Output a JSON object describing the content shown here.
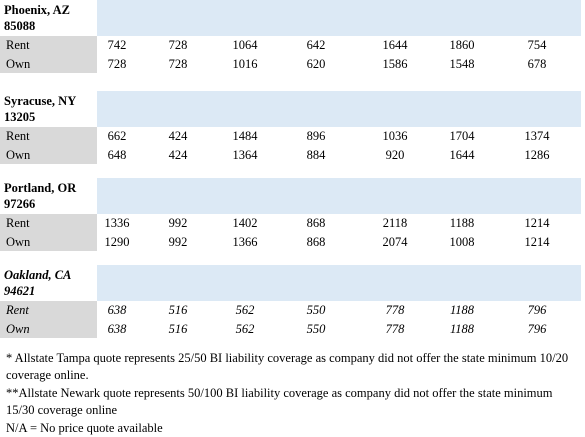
{
  "sections": [
    {
      "city": "Phoenix, AZ",
      "zip": "85088",
      "rows": [
        {
          "label": "Rent",
          "values": [
            742,
            728,
            1064,
            642,
            1644,
            1860,
            754
          ]
        },
        {
          "label": "Own",
          "values": [
            728,
            728,
            1016,
            620,
            1586,
            1548,
            678
          ]
        }
      ]
    },
    {
      "city": "Syracuse, NY",
      "zip": "13205",
      "rows": [
        {
          "label": "Rent",
          "values": [
            662,
            424,
            1484,
            896,
            1036,
            1704,
            1374
          ]
        },
        {
          "label": "Own",
          "values": [
            648,
            424,
            1364,
            884,
            920,
            1644,
            1286
          ]
        }
      ]
    },
    {
      "city": "Portland, OR",
      "zip": "97266",
      "rows": [
        {
          "label": "Rent",
          "values": [
            1336,
            992,
            1402,
            868,
            2118,
            1188,
            1214
          ]
        },
        {
          "label": "Own",
          "values": [
            1290,
            992,
            1366,
            868,
            2074,
            1008,
            1214
          ]
        }
      ]
    },
    {
      "city": "Oakland, CA",
      "zip": "94621",
      "rows": [
        {
          "label": "Rent",
          "values": [
            638,
            516,
            562,
            550,
            778,
            1188,
            796
          ]
        },
        {
          "label": "Own",
          "values": [
            638,
            516,
            562,
            550,
            778,
            1188,
            796
          ]
        }
      ]
    }
  ],
  "footnotes": [
    "* Allstate Tampa quote represents 25/50 BI liability coverage as company did not offer the state minimum 10/20 coverage online.",
    "**Allstate Newark quote represents 50/100 BI liability coverage as company did not offer the state minimum 15/30 coverage online",
    "N/A = No price quote available"
  ]
}
